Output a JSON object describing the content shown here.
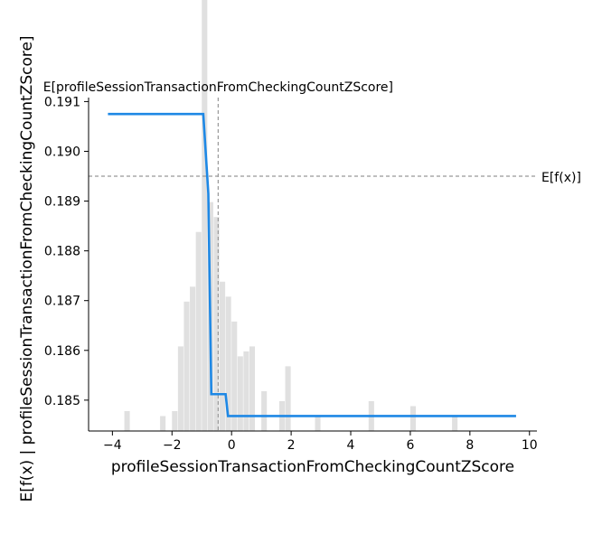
{
  "chart_data": {
    "type": "line",
    "xlabel": "profileSessionTransactionFromCheckingCountZScore",
    "ylabel": "E[f(x) | profileSessionTransactionFromCheckingCountZScore]",
    "xlim": [
      -4.8,
      10.25
    ],
    "ylim": [
      0.18438,
      0.19108
    ],
    "x_ticks": [
      -4,
      -2,
      0,
      2,
      4,
      6,
      8,
      10
    ],
    "x_tick_labels": [
      "−4",
      "−2",
      "0",
      "2",
      "4",
      "6",
      "8",
      "10"
    ],
    "y_ticks": [
      0.185,
      0.186,
      0.187,
      0.188,
      0.189,
      0.19,
      0.191
    ],
    "y_tick_labels": [
      "0.185",
      "0.186",
      "0.187",
      "0.188",
      "0.189",
      "0.190",
      "0.191"
    ],
    "grid": false,
    "series": [
      {
        "color": "#1e88e5",
        "x": [
          -4.15,
          -0.95,
          -0.78,
          -0.68,
          -0.2,
          -0.12,
          9.55
        ],
        "y": [
          0.19075,
          0.19075,
          0.18915,
          0.18512,
          0.18512,
          0.18468,
          0.18468
        ]
      }
    ],
    "expected_value": {
      "y": 0.1895,
      "label": "E[f(x)]"
    },
    "expected_feature": {
      "x": -0.45,
      "label": "E[profileSessionTransactionFromCheckingCountZScore]"
    },
    "histogram": {
      "color": "#e0e0e0",
      "bin_width": 0.2,
      "bins": [
        {
          "x": -3.6,
          "h": 0.0004
        },
        {
          "x": -2.4,
          "h": 0.0003
        },
        {
          "x": -2.0,
          "h": 0.0004
        },
        {
          "x": -1.8,
          "h": 0.0017
        },
        {
          "x": -1.6,
          "h": 0.0026
        },
        {
          "x": -1.4,
          "h": 0.0029
        },
        {
          "x": -1.2,
          "h": 0.004
        },
        {
          "x": -1.0,
          "h": 0.035
        },
        {
          "x": -0.8,
          "h": 0.0046
        },
        {
          "x": -0.6,
          "h": 0.0043
        },
        {
          "x": -0.4,
          "h": 0.003
        },
        {
          "x": -0.2,
          "h": 0.0027
        },
        {
          "x": 0.0,
          "h": 0.0022
        },
        {
          "x": 0.2,
          "h": 0.0015
        },
        {
          "x": 0.4,
          "h": 0.0016
        },
        {
          "x": 0.6,
          "h": 0.0017
        },
        {
          "x": 1.0,
          "h": 0.0008
        },
        {
          "x": 1.6,
          "h": 0.0006
        },
        {
          "x": 1.8,
          "h": 0.0013
        },
        {
          "x": 2.8,
          "h": 0.0003
        },
        {
          "x": 4.6,
          "h": 0.0006
        },
        {
          "x": 6.0,
          "h": 0.0005
        },
        {
          "x": 7.4,
          "h": 0.0003
        }
      ]
    }
  }
}
